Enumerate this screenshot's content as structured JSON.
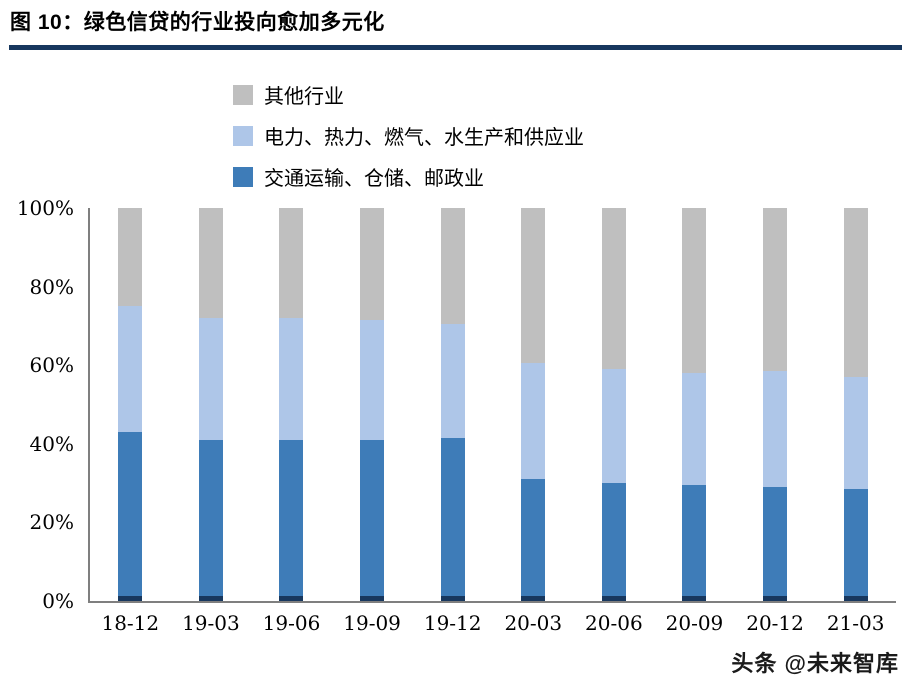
{
  "header": {
    "title": "图 10：绿色信贷的行业投向愈加多元化"
  },
  "footer": {
    "watermark": "头条 @未来智库"
  },
  "colors": {
    "title_rule": "#17375E",
    "axis": "#7f7f7f",
    "base_accent": "#17375E"
  },
  "chart_data": {
    "type": "bar",
    "variant": "stacked-percent-column",
    "title": "图 10：绿色信贷的行业投向愈加多元化",
    "xlabel": "",
    "ylabel": "",
    "ylim": [
      0,
      100
    ],
    "yticks": [
      "100%",
      "80%",
      "60%",
      "40%",
      "20%",
      "0%"
    ],
    "grid": false,
    "legend_position": "top-left-inside",
    "categories": [
      "18-12",
      "19-03",
      "19-06",
      "19-09",
      "19-12",
      "20-03",
      "20-06",
      "20-09",
      "20-12",
      "21-03"
    ],
    "series": [
      {
        "name": "交通运输、仓储、邮政业",
        "color": "#3E7CB8",
        "values": [
          43,
          41,
          41,
          41,
          41.5,
          31,
          30,
          29.5,
          29,
          28.5
        ]
      },
      {
        "name": "电力、热力、燃气、水生产和供应业",
        "color": "#AEC6E8",
        "values": [
          32,
          31,
          31,
          30.5,
          29,
          29.5,
          29,
          28.5,
          29.5,
          28.5
        ]
      },
      {
        "name": "其他行业",
        "color": "#BFBFBF",
        "values": [
          25,
          28,
          28,
          28.5,
          29.5,
          39.5,
          41,
          42,
          41.5,
          43
        ]
      }
    ],
    "legend_order": [
      2,
      1,
      0
    ],
    "base_accent_height_pct": 1.2
  }
}
